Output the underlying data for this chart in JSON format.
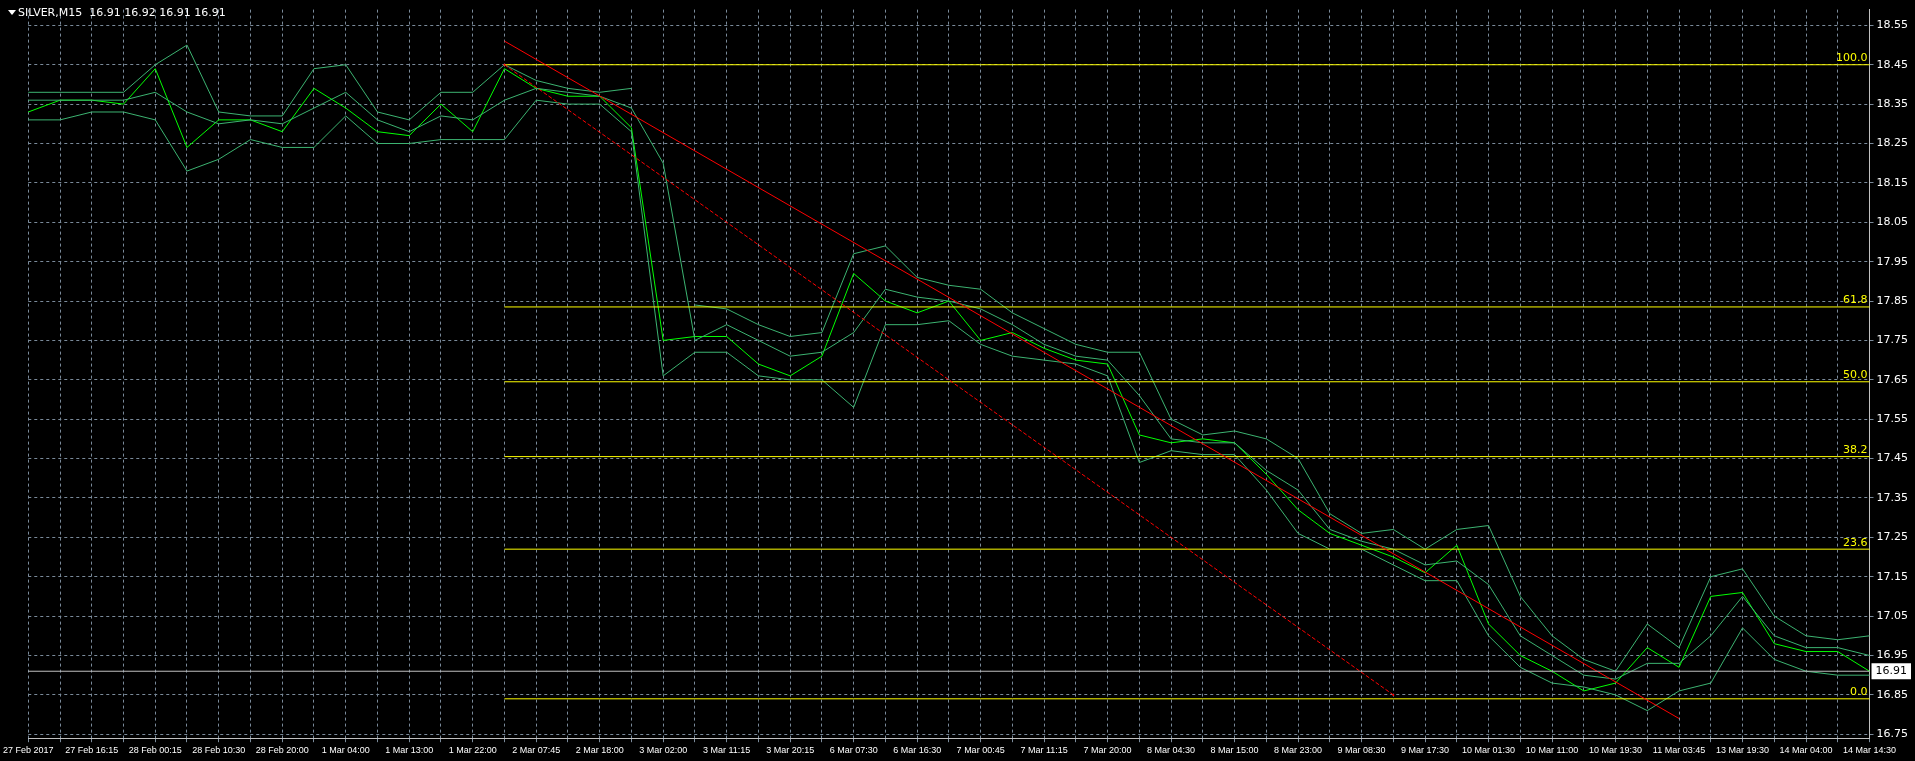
{
  "chart_data": {
    "type": "line",
    "title": "SILVER,M15  16.91 16.92 16.91 16.91",
    "categories": [
      "27 Feb 2017",
      null,
      "27 Feb 16:15",
      null,
      "28 Feb 00:15",
      null,
      "28 Feb 10:30",
      null,
      "28 Feb 20:00",
      null,
      "1 Mar 04:00",
      null,
      "1 Mar 13:00",
      null,
      "1 Mar 22:00",
      null,
      "2 Mar 07:45",
      null,
      "2 Mar 18:00",
      null,
      "3 Mar 02:00",
      null,
      "3 Mar 11:15",
      null,
      "3 Mar 20:15",
      null,
      "6 Mar 07:30",
      null,
      "6 Mar 16:30",
      null,
      "7 Mar 00:45",
      null,
      "7 Mar 11:15",
      null,
      "7 Mar 20:00",
      null,
      "8 Mar 04:30",
      null,
      "8 Mar 15:00",
      null,
      "8 Mar 23:00",
      null,
      "9 Mar 08:30",
      null,
      "9 Mar 17:30",
      null,
      "10 Mar 01:30",
      null,
      "10 Mar 11:00",
      null,
      "10 Mar 19:30",
      null,
      "11 Mar 03:45",
      null,
      "13 Mar 19:30",
      null,
      "14 Mar 04:00",
      null,
      "14 Mar 14:30"
    ],
    "series": [
      {
        "color": "#00ff00",
        "values": [
          18.33,
          18.36,
          18.36,
          18.35,
          18.44,
          18.24,
          18.31,
          18.31,
          18.28,
          18.39,
          18.34,
          18.28,
          18.27,
          18.35,
          18.28,
          18.44,
          18.39,
          18.37,
          18.37,
          18.29,
          17.75,
          17.76,
          17.76,
          17.69,
          17.66,
          17.71,
          17.92,
          17.85,
          17.82,
          17.85,
          17.75,
          17.77,
          17.73,
          17.7,
          17.69,
          17.51,
          17.49,
          17.5,
          17.49,
          17.41,
          17.32,
          17.26,
          17.23,
          17.2,
          17.16,
          17.23,
          17.03,
          16.95,
          16.91,
          16.86,
          16.88,
          16.97,
          16.92,
          17.1,
          17.11,
          16.98,
          16.96,
          16.96,
          16.91
        ]
      },
      {
        "color": "#3cb371",
        "values": [
          18.38,
          18.38,
          18.38,
          18.38,
          18.45,
          18.5,
          18.33,
          18.32,
          18.32,
          18.44,
          18.45,
          18.33,
          18.31,
          18.38,
          18.38,
          18.45,
          18.41,
          18.39,
          18.38,
          18.39,
          null,
          17.84,
          17.83,
          17.79,
          17.76,
          17.77,
          17.97,
          17.99,
          17.91,
          17.89,
          17.88,
          17.82,
          17.78,
          17.74,
          17.72,
          17.72,
          17.55,
          17.51,
          17.52,
          17.5,
          17.45,
          17.31,
          17.26,
          17.27,
          17.22,
          17.27,
          17.28,
          17.1,
          17.0,
          16.94,
          16.91,
          17.03,
          16.97,
          17.15,
          17.17,
          17.05,
          17.0,
          16.99,
          17.0
        ]
      },
      {
        "color": "#3cb371",
        "values": [
          18.36,
          18.36,
          18.36,
          18.36,
          18.38,
          18.33,
          18.3,
          18.31,
          18.3,
          18.34,
          18.38,
          18.31,
          18.28,
          18.32,
          18.31,
          18.36,
          18.39,
          18.38,
          18.37,
          18.34,
          18.2,
          17.75,
          17.79,
          17.75,
          17.71,
          17.72,
          17.77,
          17.88,
          17.86,
          17.85,
          17.83,
          17.79,
          17.74,
          17.71,
          17.7,
          17.61,
          17.5,
          17.49,
          17.49,
          17.42,
          17.37,
          17.27,
          17.24,
          17.22,
          17.18,
          17.19,
          17.13,
          17.0,
          16.95,
          16.9,
          16.89,
          16.93,
          16.93,
          17.0,
          17.1,
          17.0,
          16.97,
          16.97,
          16.95
        ]
      },
      {
        "color": "#3cb371",
        "values": [
          18.31,
          18.31,
          18.33,
          18.33,
          18.31,
          18.18,
          18.21,
          18.26,
          18.24,
          18.24,
          18.32,
          18.25,
          18.25,
          18.26,
          18.26,
          18.26,
          18.36,
          18.35,
          18.35,
          18.28,
          17.66,
          17.72,
          17.72,
          17.66,
          17.65,
          17.65,
          17.58,
          17.79,
          17.79,
          17.8,
          17.74,
          17.71,
          17.7,
          17.69,
          17.66,
          17.44,
          17.47,
          17.46,
          17.46,
          17.37,
          17.26,
          17.22,
          17.22,
          17.18,
          17.14,
          17.14,
          17.0,
          16.92,
          16.88,
          16.87,
          16.85,
          16.81,
          16.86,
          16.88,
          17.02,
          16.94,
          16.91,
          16.9,
          16.9
        ]
      },
      {
        "name": "100.0",
        "color": "#ffff00",
        "values": [
          null,
          null,
          null,
          null,
          null,
          null,
          null,
          null,
          null,
          null,
          null,
          null,
          null,
          null,
          null,
          18.45,
          18.45,
          18.45,
          18.45,
          18.45,
          18.45,
          18.45,
          18.45,
          18.45,
          18.45,
          18.45,
          18.45,
          18.45,
          18.45,
          18.45,
          18.45,
          18.45,
          18.45,
          18.45,
          18.45,
          18.45,
          18.45,
          18.45,
          18.45,
          18.45,
          18.45,
          18.45,
          18.45,
          18.45,
          18.45,
          18.45,
          18.45,
          18.45,
          18.45,
          18.45,
          18.45,
          18.45,
          18.45,
          18.45,
          18.45,
          18.45,
          18.45,
          18.45,
          18.45
        ]
      },
      {
        "name": "61.8",
        "color": "#ffff00",
        "values": [
          null,
          null,
          null,
          null,
          null,
          null,
          null,
          null,
          null,
          null,
          null,
          null,
          null,
          null,
          null,
          17.835,
          17.835,
          17.835,
          17.835,
          17.835,
          17.835,
          17.835,
          17.835,
          17.835,
          17.835,
          17.835,
          17.835,
          17.835,
          17.835,
          17.835,
          17.835,
          17.835,
          17.835,
          17.835,
          17.835,
          17.835,
          17.835,
          17.835,
          17.835,
          17.835,
          17.835,
          17.835,
          17.835,
          17.835,
          17.835,
          17.835,
          17.835,
          17.835,
          17.835,
          17.835,
          17.835,
          17.835,
          17.835,
          17.835,
          17.835,
          17.835,
          17.835,
          17.835,
          17.835
        ]
      },
      {
        "name": "50.0",
        "color": "#ffff00",
        "values": [
          null,
          null,
          null,
          null,
          null,
          null,
          null,
          null,
          null,
          null,
          null,
          null,
          null,
          null,
          null,
          17.645,
          17.645,
          17.645,
          17.645,
          17.645,
          17.645,
          17.645,
          17.645,
          17.645,
          17.645,
          17.645,
          17.645,
          17.645,
          17.645,
          17.645,
          17.645,
          17.645,
          17.645,
          17.645,
          17.645,
          17.645,
          17.645,
          17.645,
          17.645,
          17.645,
          17.645,
          17.645,
          17.645,
          17.645,
          17.645,
          17.645,
          17.645,
          17.645,
          17.645,
          17.645,
          17.645,
          17.645,
          17.645,
          17.645,
          17.645,
          17.645,
          17.645,
          17.645,
          17.645
        ]
      },
      {
        "name": "38.2",
        "color": "#ffff00",
        "values": [
          null,
          null,
          null,
          null,
          null,
          null,
          null,
          null,
          null,
          null,
          null,
          null,
          null,
          null,
          null,
          17.455,
          17.455,
          17.455,
          17.455,
          17.455,
          17.455,
          17.455,
          17.455,
          17.455,
          17.455,
          17.455,
          17.455,
          17.455,
          17.455,
          17.455,
          17.455,
          17.455,
          17.455,
          17.455,
          17.455,
          17.455,
          17.455,
          17.455,
          17.455,
          17.455,
          17.455,
          17.455,
          17.455,
          17.455,
          17.455,
          17.455,
          17.455,
          17.455,
          17.455,
          17.455,
          17.455,
          17.455,
          17.455,
          17.455,
          17.455,
          17.455,
          17.455,
          17.455,
          17.455
        ]
      },
      {
        "name": "23.6",
        "color": "#ffff00",
        "values": [
          null,
          null,
          null,
          null,
          null,
          null,
          null,
          null,
          null,
          null,
          null,
          null,
          null,
          null,
          null,
          17.22,
          17.22,
          17.22,
          17.22,
          17.22,
          17.22,
          17.22,
          17.22,
          17.22,
          17.22,
          17.22,
          17.22,
          17.22,
          17.22,
          17.22,
          17.22,
          17.22,
          17.22,
          17.22,
          17.22,
          17.22,
          17.22,
          17.22,
          17.22,
          17.22,
          17.22,
          17.22,
          17.22,
          17.22,
          17.22,
          17.22,
          17.22,
          17.22,
          17.22,
          17.22,
          17.22,
          17.22,
          17.22,
          17.22,
          17.22,
          17.22,
          17.22,
          17.22,
          17.22
        ]
      },
      {
        "name": "0.0",
        "color": "#ffff00",
        "values": [
          null,
          null,
          null,
          null,
          null,
          null,
          null,
          null,
          null,
          null,
          null,
          null,
          null,
          null,
          null,
          16.84,
          16.84,
          16.84,
          16.84,
          16.84,
          16.84,
          16.84,
          16.84,
          16.84,
          16.84,
          16.84,
          16.84,
          16.84,
          16.84,
          16.84,
          16.84,
          16.84,
          16.84,
          16.84,
          16.84,
          16.84,
          16.84,
          16.84,
          16.84,
          16.84,
          16.84,
          16.84,
          16.84,
          16.84,
          16.84,
          16.84,
          16.84,
          16.84,
          16.84,
          16.84,
          16.84,
          16.84,
          16.84,
          16.84,
          16.84,
          16.84,
          16.84,
          16.84,
          16.84
        ]
      },
      {
        "color": "#ff0000",
        "values": [
          null,
          null,
          null,
          null,
          null,
          null,
          null,
          null,
          null,
          null,
          null,
          null,
          null,
          null,
          null,
          18.51,
          null,
          null,
          null,
          null,
          null,
          null,
          null,
          null,
          null,
          null,
          null,
          null,
          null,
          null,
          null,
          null,
          null,
          null,
          null,
          null,
          null,
          null,
          null,
          null,
          null,
          null,
          null,
          null,
          null,
          null,
          null,
          null,
          null,
          null,
          null,
          null,
          16.79,
          null,
          null,
          null,
          null,
          null,
          null
        ]
      },
      {
        "color": "#ff0000",
        "line_style": "dashed",
        "values": [
          null,
          null,
          null,
          null,
          null,
          null,
          null,
          null,
          null,
          null,
          null,
          null,
          null,
          null,
          null,
          18.45,
          null,
          null,
          null,
          null,
          null,
          null,
          null,
          null,
          null,
          null,
          null,
          null,
          null,
          null,
          null,
          null,
          null,
          null,
          null,
          null,
          null,
          null,
          null,
          null,
          null,
          null,
          null,
          16.85,
          null,
          null,
          null,
          null,
          null,
          null,
          null,
          null,
          null,
          null,
          null,
          null,
          null,
          null,
          null
        ]
      }
    ],
    "ylim": [
      16.74,
      18.59
    ],
    "yticks": [
      16.75,
      16.85,
      16.95,
      17.05,
      17.15,
      17.25,
      17.35,
      17.45,
      17.55,
      17.65,
      17.75,
      17.85,
      17.95,
      18.05,
      18.15,
      18.25,
      18.35,
      18.45,
      18.55
    ],
    "ref_lines": [
      {
        "axis": "y",
        "value": 16.91,
        "label": "16.91",
        "color": "#c0c0c0"
      }
    ],
    "grid": true,
    "legend": false,
    "marker": "none"
  }
}
